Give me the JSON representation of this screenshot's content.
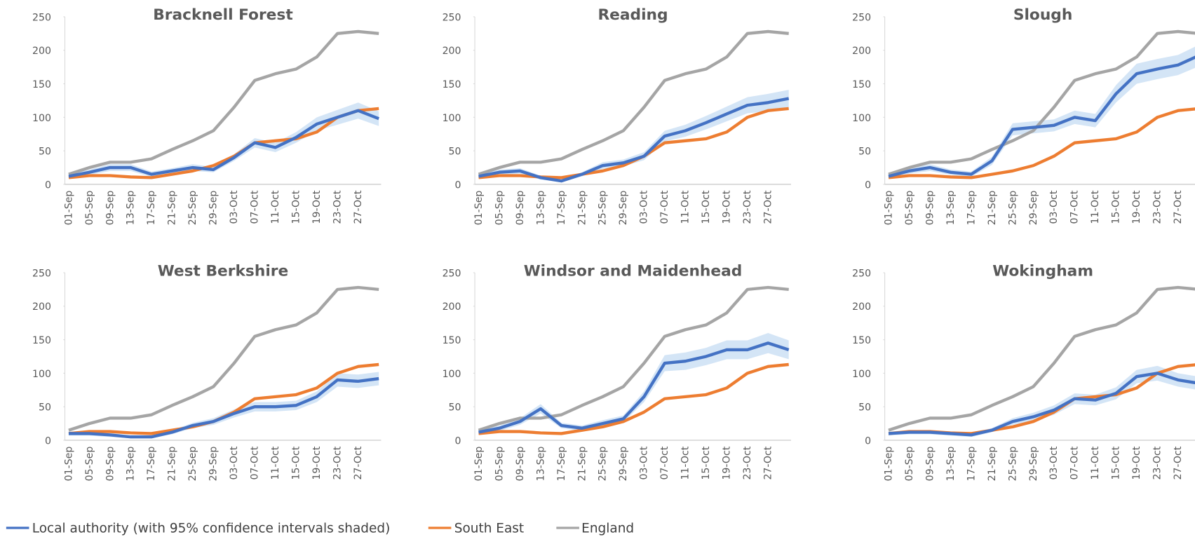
{
  "chart_data": [
    {
      "type": "line",
      "title": "Bracknell Forest",
      "categories": [
        "01-Sep",
        "05-Sep",
        "09-Sep",
        "13-Sep",
        "17-Sep",
        "21-Sep",
        "25-Sep",
        "29-Sep",
        "03-Oct",
        "07-Oct",
        "11-Oct",
        "15-Oct",
        "19-Oct",
        "23-Oct",
        "27-Oct",
        null
      ],
      "ylim": [
        0,
        250
      ],
      "yticks": [
        0,
        50,
        100,
        150,
        200,
        250
      ],
      "series": [
        {
          "name": "Local authority (with 95% confidence intervals shaded)",
          "color": "#4472c4",
          "band_color": "#c5dcf3",
          "values": [
            12,
            18,
            25,
            25,
            15,
            20,
            25,
            22,
            40,
            62,
            55,
            70,
            90,
            100,
            110,
            98
          ],
          "lower": [
            9,
            14,
            20,
            20,
            11,
            16,
            20,
            18,
            35,
            55,
            48,
            62,
            80,
            89,
            98,
            87
          ],
          "upper": [
            15,
            22,
            30,
            30,
            19,
            24,
            30,
            26,
            45,
            69,
            62,
            78,
            100,
            111,
            122,
            109
          ]
        },
        {
          "name": "South East",
          "color": "#ed7d31",
          "values": [
            10,
            13,
            13,
            11,
            10,
            15,
            20,
            28,
            42,
            62,
            65,
            68,
            78,
            100,
            110,
            113
          ]
        },
        {
          "name": "England",
          "color": "#a5a5a5",
          "values": [
            15,
            25,
            33,
            33,
            38,
            52,
            65,
            80,
            115,
            155,
            165,
            172,
            190,
            225,
            228,
            225
          ]
        }
      ]
    },
    {
      "type": "line",
      "title": "Reading",
      "categories": [
        "01-Sep",
        "05-Sep",
        "09-Sep",
        "13-Sep",
        "17-Sep",
        "21-Sep",
        "25-Sep",
        "29-Sep",
        "03-Oct",
        "07-Oct",
        "11-Oct",
        "15-Oct",
        "19-Oct",
        "23-Oct",
        "27-Oct",
        null
      ],
      "ylim": [
        0,
        250
      ],
      "yticks": [
        0,
        50,
        100,
        150,
        200,
        250
      ],
      "series": [
        {
          "name": "Local authority (with 95% confidence intervals shaded)",
          "color": "#4472c4",
          "band_color": "#c5dcf3",
          "values": [
            12,
            18,
            20,
            10,
            5,
            15,
            28,
            32,
            42,
            72,
            80,
            92,
            105,
            118,
            122,
            128
          ],
          "lower": [
            9,
            14,
            16,
            7,
            3,
            12,
            23,
            27,
            36,
            64,
            71,
            82,
            94,
            106,
            109,
            115
          ],
          "upper": [
            15,
            22,
            24,
            13,
            7,
            18,
            33,
            37,
            48,
            80,
            89,
            102,
            116,
            130,
            135,
            141
          ]
        },
        {
          "name": "South East",
          "color": "#ed7d31",
          "values": [
            10,
            13,
            13,
            11,
            10,
            15,
            20,
            28,
            42,
            62,
            65,
            68,
            78,
            100,
            110,
            113
          ]
        },
        {
          "name": "England",
          "color": "#a5a5a5",
          "values": [
            15,
            25,
            33,
            33,
            38,
            52,
            65,
            80,
            115,
            155,
            165,
            172,
            190,
            225,
            228,
            225
          ]
        }
      ]
    },
    {
      "type": "line",
      "title": "Slough",
      "categories": [
        "01-Sep",
        "05-Sep",
        "09-Sep",
        "13-Sep",
        "17-Sep",
        "21-Sep",
        "25-Sep",
        "29-Sep",
        "03-Oct",
        "07-Oct",
        "11-Oct",
        "15-Oct",
        "19-Oct",
        "23-Oct",
        "27-Oct",
        null
      ],
      "ylim": [
        0,
        250
      ],
      "yticks": [
        0,
        50,
        100,
        150,
        200,
        250
      ],
      "series": [
        {
          "name": "Local authority (with 95% confidence intervals shaded)",
          "color": "#4472c4",
          "band_color": "#c5dcf3",
          "values": [
            12,
            20,
            25,
            18,
            15,
            35,
            82,
            85,
            88,
            100,
            95,
            135,
            165,
            172,
            178,
            192
          ],
          "lower": [
            9,
            16,
            20,
            14,
            11,
            29,
            73,
            76,
            79,
            90,
            85,
            122,
            150,
            157,
            163,
            176
          ],
          "upper": [
            15,
            24,
            30,
            22,
            19,
            41,
            91,
            94,
            97,
            110,
            105,
            148,
            180,
            187,
            193,
            208
          ]
        },
        {
          "name": "South East",
          "color": "#ed7d31",
          "values": [
            10,
            13,
            13,
            11,
            10,
            15,
            20,
            28,
            42,
            62,
            65,
            68,
            78,
            100,
            110,
            113
          ]
        },
        {
          "name": "England",
          "color": "#a5a5a5",
          "values": [
            15,
            25,
            33,
            33,
            38,
            52,
            65,
            80,
            115,
            155,
            165,
            172,
            190,
            225,
            228,
            225
          ]
        }
      ]
    },
    {
      "type": "line",
      "title": "West Berkshire",
      "categories": [
        "01-Sep",
        "05-Sep",
        "09-Sep",
        "13-Sep",
        "17-Sep",
        "21-Sep",
        "25-Sep",
        "29-Sep",
        "03-Oct",
        "07-Oct",
        "11-Oct",
        "15-Oct",
        "19-Oct",
        "23-Oct",
        "27-Oct",
        null
      ],
      "ylim": [
        0,
        250
      ],
      "yticks": [
        0,
        50,
        100,
        150,
        200,
        250
      ],
      "series": [
        {
          "name": "Local authority (with 95% confidence intervals shaded)",
          "color": "#4472c4",
          "band_color": "#c5dcf3",
          "values": [
            10,
            10,
            8,
            5,
            5,
            12,
            22,
            28,
            40,
            50,
            50,
            52,
            65,
            90,
            88,
            92
          ],
          "lower": [
            7,
            7,
            5,
            3,
            3,
            9,
            18,
            23,
            34,
            43,
            43,
            45,
            57,
            80,
            78,
            82
          ],
          "upper": [
            13,
            13,
            11,
            7,
            7,
            15,
            26,
            33,
            46,
            57,
            57,
            59,
            73,
            100,
            98,
            102
          ]
        },
        {
          "name": "South East",
          "color": "#ed7d31",
          "values": [
            10,
            13,
            13,
            11,
            10,
            15,
            20,
            28,
            42,
            62,
            65,
            68,
            78,
            100,
            110,
            113
          ]
        },
        {
          "name": "England",
          "color": "#a5a5a5",
          "values": [
            15,
            25,
            33,
            33,
            38,
            52,
            65,
            80,
            115,
            155,
            165,
            172,
            190,
            225,
            228,
            225
          ]
        }
      ]
    },
    {
      "type": "line",
      "title": "Windsor and Maidenhead",
      "categories": [
        "01-Sep",
        "05-Sep",
        "09-Sep",
        "13-Sep",
        "17-Sep",
        "21-Sep",
        "25-Sep",
        "29-Sep",
        "03-Oct",
        "07-Oct",
        "11-Oct",
        "15-Oct",
        "19-Oct",
        "23-Oct",
        "27-Oct",
        null
      ],
      "ylim": [
        0,
        250
      ],
      "yticks": [
        0,
        50,
        100,
        150,
        200,
        250
      ],
      "series": [
        {
          "name": "Local authority (with 95% confidence intervals shaded)",
          "color": "#4472c4",
          "band_color": "#c5dcf3",
          "values": [
            12,
            18,
            28,
            47,
            22,
            18,
            25,
            32,
            65,
            115,
            118,
            125,
            135,
            135,
            145,
            135
          ],
          "lower": [
            9,
            14,
            23,
            40,
            18,
            14,
            20,
            27,
            57,
            103,
            105,
            112,
            121,
            121,
            130,
            121
          ],
          "upper": [
            15,
            22,
            33,
            54,
            26,
            22,
            30,
            37,
            73,
            127,
            131,
            138,
            149,
            149,
            160,
            149
          ]
        },
        {
          "name": "South East",
          "color": "#ed7d31",
          "values": [
            10,
            13,
            13,
            11,
            10,
            15,
            20,
            28,
            42,
            62,
            65,
            68,
            78,
            100,
            110,
            113
          ]
        },
        {
          "name": "England",
          "color": "#a5a5a5",
          "values": [
            15,
            25,
            33,
            33,
            38,
            52,
            65,
            80,
            115,
            155,
            165,
            172,
            190,
            225,
            228,
            225
          ]
        }
      ]
    },
    {
      "type": "line",
      "title": "Wokingham",
      "categories": [
        "01-Sep",
        "05-Sep",
        "09-Sep",
        "13-Sep",
        "17-Sep",
        "21-Sep",
        "25-Sep",
        "29-Sep",
        "03-Oct",
        "07-Oct",
        "11-Oct",
        "15-Oct",
        "19-Oct",
        "23-Oct",
        "27-Oct",
        null
      ],
      "ylim": [
        0,
        250
      ],
      "yticks": [
        0,
        50,
        100,
        150,
        200,
        250
      ],
      "series": [
        {
          "name": "Local authority (with 95% confidence intervals shaded)",
          "color": "#4472c4",
          "band_color": "#c5dcf3",
          "values": [
            10,
            12,
            12,
            10,
            8,
            15,
            28,
            35,
            45,
            62,
            60,
            70,
            95,
            100,
            90,
            85
          ],
          "lower": [
            7,
            9,
            9,
            7,
            5,
            12,
            23,
            29,
            38,
            54,
            52,
            61,
            85,
            89,
            80,
            75
          ],
          "upper": [
            13,
            15,
            15,
            13,
            11,
            18,
            33,
            41,
            52,
            70,
            68,
            79,
            105,
            111,
            100,
            95
          ]
        },
        {
          "name": "South East",
          "color": "#ed7d31",
          "values": [
            10,
            13,
            13,
            11,
            10,
            15,
            20,
            28,
            42,
            62,
            65,
            68,
            78,
            100,
            110,
            113
          ]
        },
        {
          "name": "England",
          "color": "#a5a5a5",
          "values": [
            15,
            25,
            33,
            33,
            38,
            52,
            65,
            80,
            115,
            155,
            165,
            172,
            190,
            225,
            228,
            225
          ]
        }
      ]
    }
  ]
}
